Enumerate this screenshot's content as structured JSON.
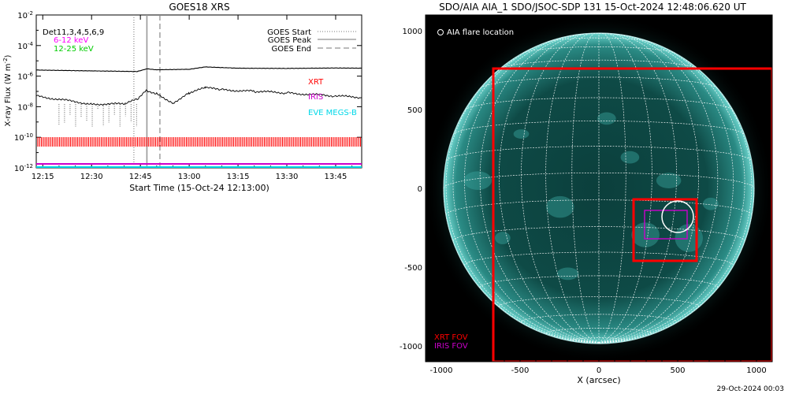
{
  "left_panel": {
    "title": "GOES18 XRS",
    "ylabel_main": "X-ray Flux (W m",
    "ylabel_sup": "-2",
    "ylabel_close": ")",
    "xlabel": "Start Time (15-Oct-24 12:13:00)",
    "det_label": "Det11,3,4,5,6,9",
    "band_1": "6-12 keV",
    "band_2": "12-25 keV",
    "legend": [
      "GOES Start",
      "GOES Peak",
      "GOES End"
    ],
    "instruments": [
      "XRT",
      "IRIS",
      "EVE MEGS-B"
    ]
  },
  "right_panel": {
    "title": "SDO/AIA AIA_1 SDO/JSOC-SDP 131 15-Oct-2024 12:48:06.620 UT",
    "flare_location_label": "AIA flare location",
    "xlabel": "X (arcsec)",
    "fov_labels": [
      "XRT FOV",
      "IRIS FOV"
    ],
    "x_ticks": [
      "-1000",
      "-500",
      "0",
      "500",
      "1000"
    ],
    "y_ticks": [
      "1000",
      "500",
      "0",
      "-500",
      "-1000"
    ]
  },
  "footer_date": "29-Oct-2024 00:03",
  "colors": {
    "band_1": "#ff00ff",
    "band_2": "#00cc00",
    "xrt": "#ff0000",
    "iris": "#cc00cc",
    "eve": "#00d8e8",
    "sun_disk": "#0d4d48",
    "grid": "#ffffff"
  },
  "chart_data": [
    {
      "type": "line",
      "title": "GOES18 XRS",
      "xlabel": "Start Time (15-Oct-24 12:13:00)",
      "ylabel": "X-ray Flux (W m^-2)",
      "y_scale": "log",
      "ylim": [
        1e-12,
        0.01
      ],
      "xlim": [
        "12:13",
        "13:53"
      ],
      "x_ticks": [
        "12:15",
        "12:30",
        "12:45",
        "13:00",
        "13:15",
        "13:30",
        "13:45"
      ],
      "y_ticks": [
        "10^-2",
        "10^-4",
        "10^-6",
        "10^-8",
        "10^-10",
        "10^-12"
      ],
      "vertical_lines": [
        {
          "name": "GOES Start",
          "x": "12:43",
          "style": "dotted"
        },
        {
          "name": "GOES Peak",
          "x": "12:47",
          "style": "solid"
        },
        {
          "name": "GOES End",
          "x": "12:51",
          "style": "dashed"
        }
      ],
      "series": [
        {
          "x": [
            "12:13",
            "12:30",
            "12:44",
            "12:47",
            "12:50",
            "13:00",
            "13:05",
            "13:15",
            "13:30",
            "13:45",
            "13:53"
          ],
          "values": [
            2.5e-06,
            2.2e-06,
            2e-06,
            3e-06,
            2.6e-06,
            2.8e-06,
            4e-06,
            3.3e-06,
            3.2e-06,
            3.4e-06,
            3.3e-06
          ]
        },
        {
          "x": [
            "12:13",
            "12:20",
            "12:30",
            "12:40",
            "12:44",
            "12:47",
            "12:50",
            "12:55",
            "13:00",
            "13:05",
            "13:10",
            "13:20",
            "13:30",
            "13:45",
            "13:53"
          ],
          "values": [
            5e-08,
            3e-08,
            1.5e-08,
            1.5e-08,
            3e-08,
            1.2e-07,
            7e-08,
            1.8e-08,
            8e-08,
            1.7e-07,
            1.3e-07,
            1e-07,
            8e-08,
            5e-08,
            4e-08
          ]
        }
      ],
      "instrument_bands": [
        {
          "name": "XRT",
          "flux_level": 5e-11
        },
        {
          "name": "IRIS",
          "flux_level": 1.8e-12
        },
        {
          "name": "EVE MEGS-B",
          "flux_level": 1e-12
        }
      ]
    },
    {
      "type": "image",
      "title": "SDO/AIA AIA_1 SDO/JSOC-SDP 131 15-Oct-2024 12:48:06.620 UT",
      "xlabel": "X (arcsec)",
      "xlim": [
        -1100,
        1100
      ],
      "ylim": [
        -1100,
        1100
      ],
      "solar_radius_arcsec": 985,
      "xrt_fov": {
        "x": [
          -670,
          1100
        ],
        "y": [
          -1100,
          760
        ]
      },
      "inner_xrt_box": {
        "x": [
          220,
          620
        ],
        "y": [
          -460,
          -70
        ]
      },
      "iris_fov": {
        "x": [
          290,
          560
        ],
        "y": [
          -320,
          -140
        ]
      },
      "flare_location": {
        "x": 500,
        "y": -180,
        "radius": 100
      }
    }
  ]
}
